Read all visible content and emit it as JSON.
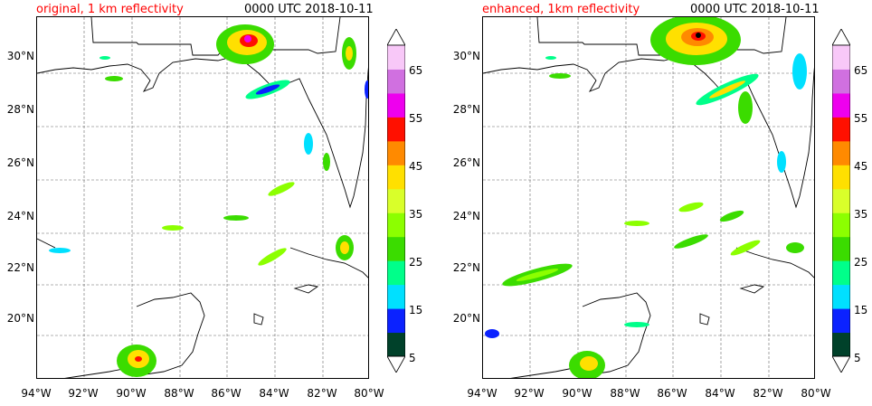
{
  "panels": [
    {
      "title_left": "original, 1 km reflectivity",
      "title_right": "0000 UTC 2018-10-11"
    },
    {
      "title_left": "enhanced, 1km reflectivity",
      "title_right": "0000 UTC 2018-10-11"
    }
  ],
  "axes": {
    "lat_labels": [
      "30°N",
      "28°N",
      "26°N",
      "24°N",
      "22°N",
      "20°N"
    ],
    "lon_labels": [
      "94°W",
      "92°W",
      "90°W",
      "88°W",
      "86°W",
      "84°W",
      "82°W",
      "80°W"
    ]
  },
  "colorbar": {
    "labels": [
      "5",
      "15",
      "25",
      "35",
      "45",
      "55",
      "65"
    ],
    "colors": [
      "#00412a",
      "#0b22ff",
      "#00e0ff",
      "#00ff8a",
      "#3bdc00",
      "#8cff00",
      "#d9ff2a",
      "#ffe000",
      "#ff8a00",
      "#ff1000",
      "#ee00ee",
      "#d070e0",
      "#f8c8f8"
    ]
  },
  "colors": {
    "title_accent": "#ff0000",
    "grid": "#666666",
    "coastline": "#000000"
  }
}
